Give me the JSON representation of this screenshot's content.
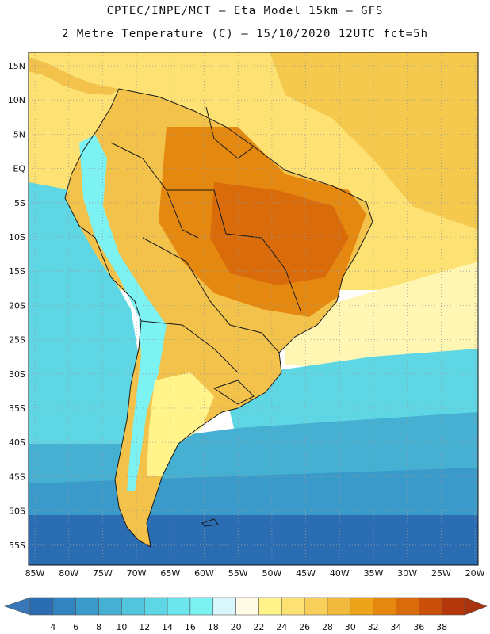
{
  "header": {
    "title_line1": "CPTEC/INPE/MCT –   Eta Model 15km – GFS",
    "title_line2": "2 Metre Temperature (C) – 15/10/2020 12UTC fct=5h"
  },
  "axes": {
    "lat_labels": [
      "15N",
      "10N",
      "5N",
      "EQ",
      "5S",
      "10S",
      "15S",
      "20S",
      "25S",
      "30S",
      "35S",
      "40S",
      "45S",
      "50S",
      "55S"
    ],
    "lon_labels": [
      "85W",
      "80W",
      "75W",
      "70W",
      "65W",
      "60W",
      "55W",
      "50W",
      "45W",
      "40W",
      "35W",
      "30W",
      "25W",
      "20W"
    ]
  },
  "colorbar": {
    "labels": [
      "4",
      "6",
      "8",
      "10",
      "12",
      "14",
      "16",
      "18",
      "20",
      "22",
      "24",
      "26",
      "28",
      "30",
      "32",
      "34",
      "36",
      "38"
    ],
    "colors": [
      "#2a6db3",
      "#3184bf",
      "#3a9ac9",
      "#46b0d3",
      "#52c4dc",
      "#5fd6e4",
      "#6ce6ec",
      "#7cf2f2",
      "#d8f6fb",
      "#fffbe6",
      "#fff38a",
      "#fde273",
      "#f7cf5a",
      "#efba3e",
      "#eda419",
      "#e58810",
      "#d96b0b",
      "#c94f0a",
      "#b3370a"
    ],
    "under_color": "#3878b8",
    "over_color": "#a8340e"
  },
  "map_colors": {
    "ocean_warm": "#fde273",
    "ocean_very_warm": "#f5c84e",
    "ocean_mild": "#fff6b4",
    "ocean_cool": "#5fd6e4",
    "ocean_cold": "#46b0d3",
    "ocean_colder": "#3a9ac9",
    "ocean_coldest": "#2a6db3",
    "land_base": "#f2c24a",
    "land_hot": "#e58810",
    "land_hotter": "#d96b0b",
    "andes_cool": "#7cf2f2",
    "patagonia": "#fff38a",
    "border": "#1a1a1a"
  }
}
